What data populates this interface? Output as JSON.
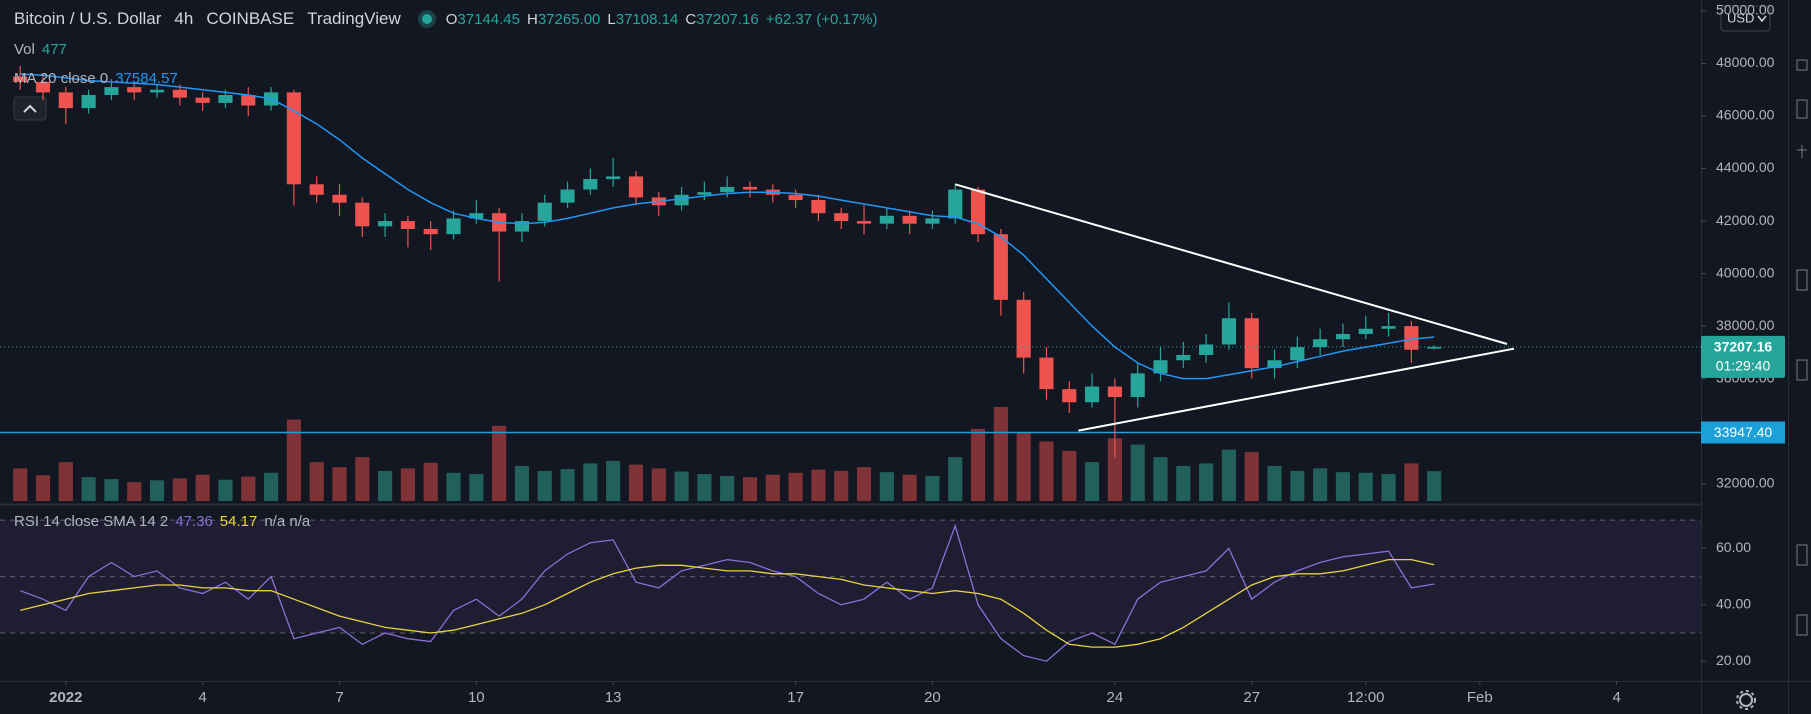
{
  "chart_data": {
    "type": "candlestick",
    "title": "Bitcoin / U.S. Dollar",
    "interval": "4h",
    "exchange": "COINBASE",
    "source": "TradingView",
    "ohlc_prefixes": [
      "O",
      "H",
      "L",
      "C"
    ],
    "ohlc_labels": [
      "37144.45",
      "37265.00",
      "37108.14",
      "37207.16"
    ],
    "change": "+62.37 (+0.17%)",
    "volume_label": "Vol",
    "currency": "USD",
    "countdown": "01:29:40",
    "up_color": "#26a69a",
    "down_color": "#ef5350",
    "volume_up_color": "#22605c",
    "volume_down_color": "#7f3337",
    "x": [
      0,
      0.5,
      1,
      1.5,
      2,
      2.5,
      3,
      3.5,
      4,
      4.5,
      5,
      5.5,
      6,
      6.5,
      7,
      7.5,
      8,
      8.5,
      9,
      9.5,
      10,
      10.5,
      11,
      11.5,
      12,
      12.5,
      13,
      13.5,
      14,
      14.5,
      15,
      15.5,
      16,
      16.5,
      17,
      17.5,
      18,
      18.5,
      19,
      19.5,
      20,
      20.5,
      21,
      21.5,
      22,
      22.5,
      23,
      23.5,
      24,
      24.5,
      25,
      25.5,
      26,
      26.5,
      27,
      27.5,
      28,
      28.5,
      29,
      29.5,
      30,
      30.5,
      31
    ],
    "open": [
      47500,
      47300,
      46900,
      46300,
      46800,
      47100,
      46900,
      47000,
      46700,
      46500,
      46800,
      46400,
      46900,
      43400,
      43000,
      42700,
      41800,
      42000,
      41700,
      41500,
      42100,
      42300,
      41600,
      42000,
      42700,
      43200,
      43600,
      43700,
      42900,
      42600,
      43000,
      43100,
      43300,
      43200,
      43000,
      42800,
      42300,
      42000,
      41900,
      42200,
      41900,
      42100,
      43200,
      41500,
      39000,
      36800,
      35600,
      35100,
      35700,
      35300,
      36200,
      36700,
      36900,
      37300,
      38300,
      36400,
      36700,
      37200,
      37500,
      37700,
      37900,
      38000,
      37144.45
    ],
    "high": [
      47900,
      47600,
      47100,
      47000,
      47400,
      47300,
      47200,
      47200,
      46900,
      47000,
      47100,
      47100,
      47000,
      43700,
      43400,
      42900,
      42300,
      42200,
      42000,
      42400,
      42800,
      42500,
      42300,
      43000,
      43500,
      44000,
      44400,
      43900,
      43100,
      43300,
      43500,
      43700,
      43500,
      43400,
      43200,
      43000,
      42500,
      42600,
      42500,
      42400,
      42400,
      43400,
      43300,
      41700,
      39300,
      37200,
      35900,
      36200,
      36000,
      36600,
      37200,
      37400,
      37700,
      38900,
      38500,
      37100,
      37600,
      37900,
      38100,
      38400,
      38500,
      38200,
      37265
    ],
    "low": [
      47000,
      46600,
      45700,
      46100,
      46600,
      46600,
      46700,
      46400,
      46200,
      46300,
      46000,
      46200,
      42600,
      42700,
      42200,
      41400,
      41400,
      41000,
      40900,
      41300,
      41900,
      39700,
      41200,
      41800,
      42500,
      43000,
      43300,
      42600,
      42200,
      42400,
      42800,
      42900,
      42900,
      42700,
      42500,
      42000,
      41700,
      41500,
      41700,
      41500,
      41700,
      41900,
      41200,
      38400,
      36200,
      35200,
      34700,
      34900,
      33000,
      34900,
      35900,
      36400,
      36600,
      37100,
      36000,
      36000,
      36400,
      36900,
      37200,
      37500,
      37600,
      36600,
      37108.14
    ],
    "close": [
      47300,
      46900,
      46300,
      46800,
      47100,
      46900,
      47000,
      46700,
      46500,
      46800,
      46400,
      46900,
      43400,
      43000,
      42700,
      41800,
      42000,
      41700,
      41500,
      42100,
      42300,
      41600,
      42000,
      42700,
      43200,
      43600,
      43700,
      42900,
      42600,
      43000,
      43100,
      43300,
      43200,
      43000,
      42800,
      42300,
      42000,
      41900,
      42200,
      41900,
      42100,
      43200,
      41500,
      39000,
      36800,
      35600,
      35100,
      35700,
      35300,
      36200,
      36700,
      36900,
      37300,
      38300,
      36400,
      36700,
      37200,
      37500,
      37700,
      37900,
      38000,
      37100,
      37207.16
    ],
    "volume": [
      520,
      410,
      620,
      380,
      350,
      300,
      330,
      360,
      420,
      340,
      390,
      450,
      1300,
      620,
      540,
      700,
      480,
      520,
      610,
      450,
      430,
      1200,
      560,
      480,
      510,
      600,
      640,
      580,
      520,
      470,
      430,
      400,
      380,
      420,
      450,
      500,
      480,
      540,
      460,
      420,
      400,
      700,
      1150,
      1500,
      1100,
      950,
      800,
      620,
      1000,
      900,
      700,
      560,
      600,
      820,
      780,
      560,
      480,
      520,
      460,
      450,
      430,
      600,
      477
    ],
    "ma": {
      "label": "MA 20 close 0",
      "color": "#2196f3",
      "values": [
        47600,
        47550,
        47450,
        47350,
        47300,
        47250,
        47200,
        47100,
        47000,
        46900,
        46800,
        46650,
        46200,
        45700,
        45100,
        44400,
        43800,
        43200,
        42700,
        42300,
        42100,
        41950,
        41900,
        41950,
        42100,
        42300,
        42500,
        42650,
        42750,
        42850,
        42950,
        43050,
        43100,
        43100,
        43050,
        42950,
        42800,
        42650,
        42500,
        42350,
        42200,
        42150,
        41900,
        41400,
        40700,
        39800,
        38900,
        38000,
        37200,
        36600,
        36200,
        36000,
        36000,
        36150,
        36300,
        36450,
        36650,
        36850,
        37050,
        37200,
        37350,
        37500,
        37584.57
      ]
    },
    "xlim": [
      -0.443,
      36.85
    ],
    "xticks": [
      {
        "value": 1,
        "label": "2022"
      },
      4,
      7,
      10,
      13,
      17,
      20,
      24,
      27,
      {
        "value": 29.5,
        "label": "12:00"
      },
      {
        "value": 32,
        "label": "Feb"
      },
      {
        "value": 35,
        "label": "4"
      }
    ],
    "ylim": [
      31340,
      50418
    ],
    "yticks": [
      {
        "value": 32000,
        "label": "32000.00"
      },
      {
        "value": 36000,
        "label": "36000.00"
      },
      {
        "value": 38000,
        "label": "38000.00"
      },
      {
        "value": 40000,
        "label": "40000.00"
      },
      {
        "value": 42000,
        "label": "42000.00"
      },
      {
        "value": 44000,
        "label": "44000.00"
      },
      {
        "value": 46000,
        "label": "46000.00"
      },
      {
        "value": 48000,
        "label": "48000.00"
      },
      {
        "value": 50000,
        "label": "50000.00"
      }
    ],
    "hlines": [
      {
        "value": 33947.4,
        "label": "33947.40",
        "color": "#1ca0d9"
      }
    ],
    "trendlines": [
      {
        "x": [
          20.5,
          32.6
        ],
        "y": [
          43400,
          37320
        ],
        "color": "#ffffff"
      },
      {
        "x": [
          23.2,
          32.75
        ],
        "y": [
          34020,
          37140
        ],
        "color": "#ffffff"
      }
    ],
    "rsi": {
      "label": "RSI 14 close SMA 14 2",
      "na_text": "n/a n/a",
      "color": "#8b6fd6",
      "values": [
        45,
        42,
        38,
        50,
        55,
        50,
        52,
        46,
        44,
        48,
        42,
        50,
        28,
        30,
        32,
        26,
        30,
        28,
        27,
        38,
        42,
        36,
        42,
        52,
        58,
        62,
        63,
        48,
        46,
        52,
        54,
        56,
        55,
        52,
        50,
        44,
        40,
        42,
        48,
        42,
        46,
        68,
        40,
        28,
        22,
        20,
        27,
        30,
        26,
        42,
        48,
        50,
        52,
        60,
        42,
        48,
        52,
        55,
        57,
        58,
        59,
        46,
        47.36
      ],
      "sma": {
        "color": "#e8d33f",
        "values": [
          38,
          40,
          42,
          44,
          45,
          46,
          47,
          47,
          46,
          46,
          45,
          45,
          42,
          39,
          36,
          34,
          32,
          31,
          30,
          31,
          33,
          35,
          37,
          40,
          44,
          48,
          51,
          53,
          54,
          54,
          53,
          52,
          52,
          51,
          51,
          50,
          49,
          47,
          46,
          45,
          44,
          45,
          44,
          42,
          37,
          31,
          26,
          25,
          25,
          26,
          28,
          32,
          37,
          42,
          47,
          50,
          51,
          51,
          52,
          54,
          56,
          56,
          54.17
        ]
      },
      "ylim": [
        13,
        74.3
      ],
      "yticks": [
        {
          "value": 20,
          "label": "20.00"
        },
        {
          "value": 40,
          "label": "40.00"
        },
        {
          "value": 60,
          "label": "60.00"
        }
      ],
      "bands": [
        70,
        50,
        30
      ]
    }
  }
}
